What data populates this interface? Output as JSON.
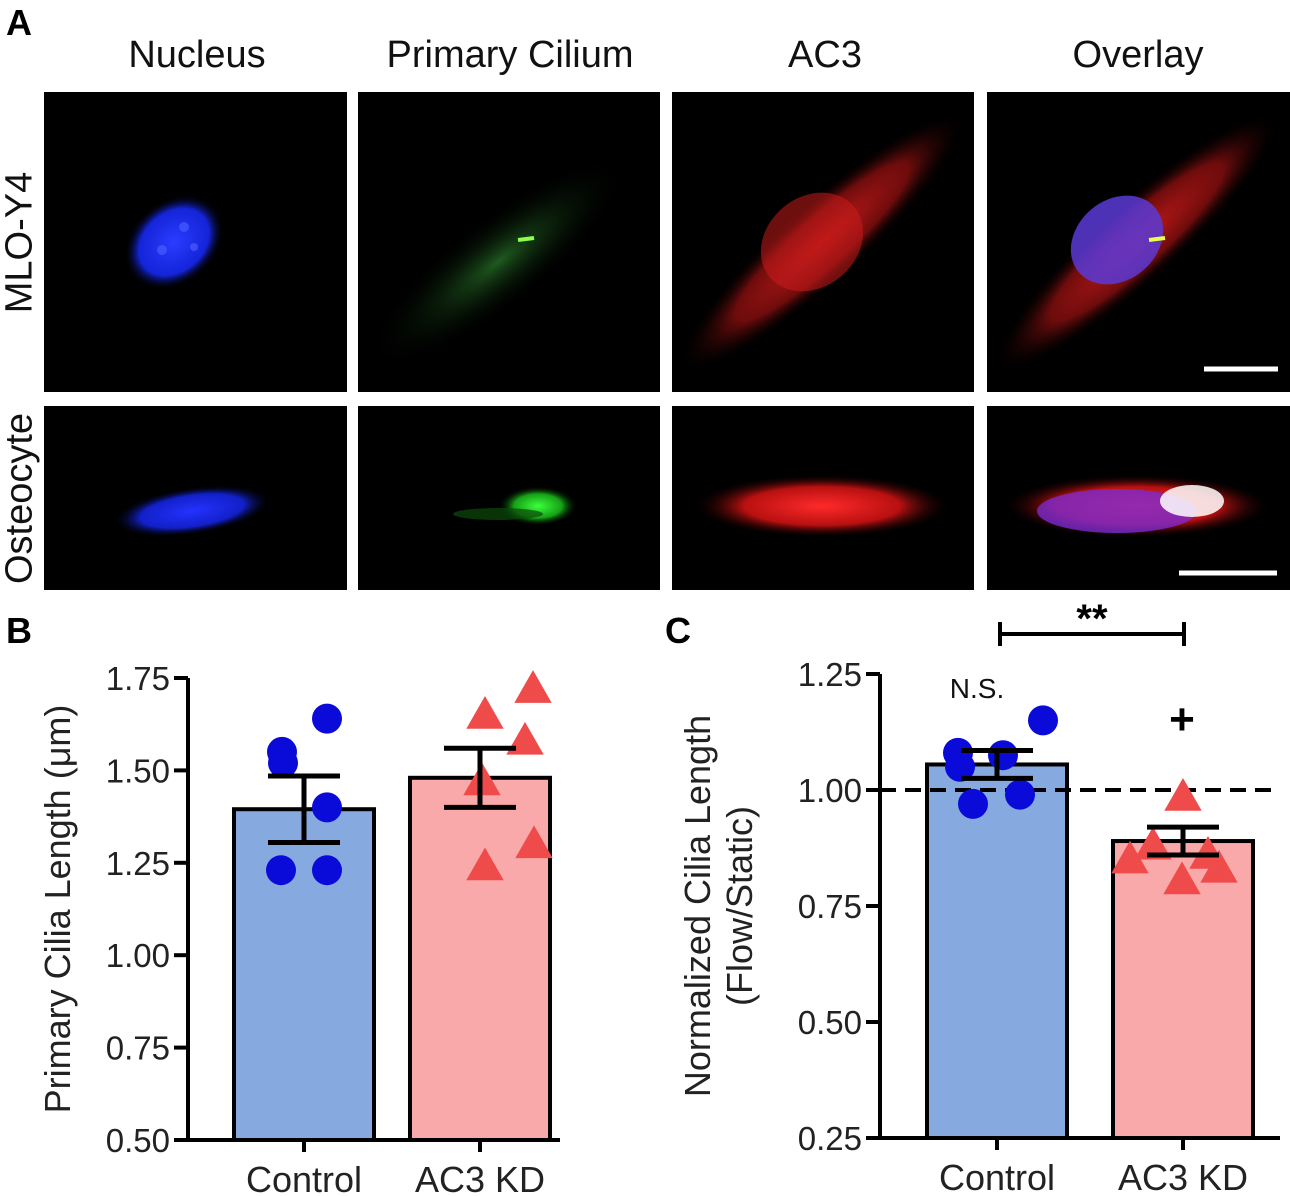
{
  "panel_a": {
    "letter": "A",
    "columns": [
      "Nucleus",
      "Primary Cilium",
      "AC3",
      "Overlay"
    ],
    "rows": [
      "MLO-Y4",
      "Osteocyte"
    ]
  },
  "panel_b": {
    "letter": "B"
  },
  "panel_c": {
    "letter": "C"
  },
  "colors": {
    "control_bar": "#86a9df",
    "ac3kd_bar": "#f9a9aa",
    "control_points": "#0b0bd9",
    "ac3kd_points": "#f04b4b"
  },
  "chart_data": [
    {
      "id": "B",
      "type": "bar",
      "ylabel": "Primary  Cilia  Length (μm)",
      "ylim": [
        0.5,
        1.75
      ],
      "yticks": [
        "0.50",
        "0.75",
        "1.00",
        "1.25",
        "1.50",
        "1.75"
      ],
      "categories": [
        "Control",
        "AC3 KD"
      ],
      "means": [
        1.395,
        1.48
      ],
      "sem": [
        0.09,
        0.08
      ],
      "points": [
        [
          1.64,
          1.55,
          1.52,
          1.4,
          1.23,
          1.23
        ],
        [
          1.72,
          1.65,
          1.58,
          1.47,
          1.3,
          1.24
        ]
      ]
    },
    {
      "id": "C",
      "type": "bar",
      "ylabel": "Normalized Cilia Length",
      "ylabel2": "(Flow/Static)",
      "ylim": [
        0.25,
        1.25
      ],
      "yticks": [
        "0.25",
        "0.50",
        "0.75",
        "1.00",
        "1.25"
      ],
      "categories": [
        "Control",
        "AC3 KD"
      ],
      "means": [
        1.055,
        0.89
      ],
      "sem": [
        0.03,
        0.03
      ],
      "reference_line": 1.0,
      "points": [
        [
          1.15,
          1.08,
          1.075,
          1.05,
          0.99,
          0.97
        ],
        [
          0.985,
          0.88,
          0.86,
          0.85,
          0.83,
          0.805
        ]
      ],
      "annotations": {
        "significance": "**",
        "control_label": "N.S.",
        "ac3kd_label": "+"
      }
    }
  ]
}
